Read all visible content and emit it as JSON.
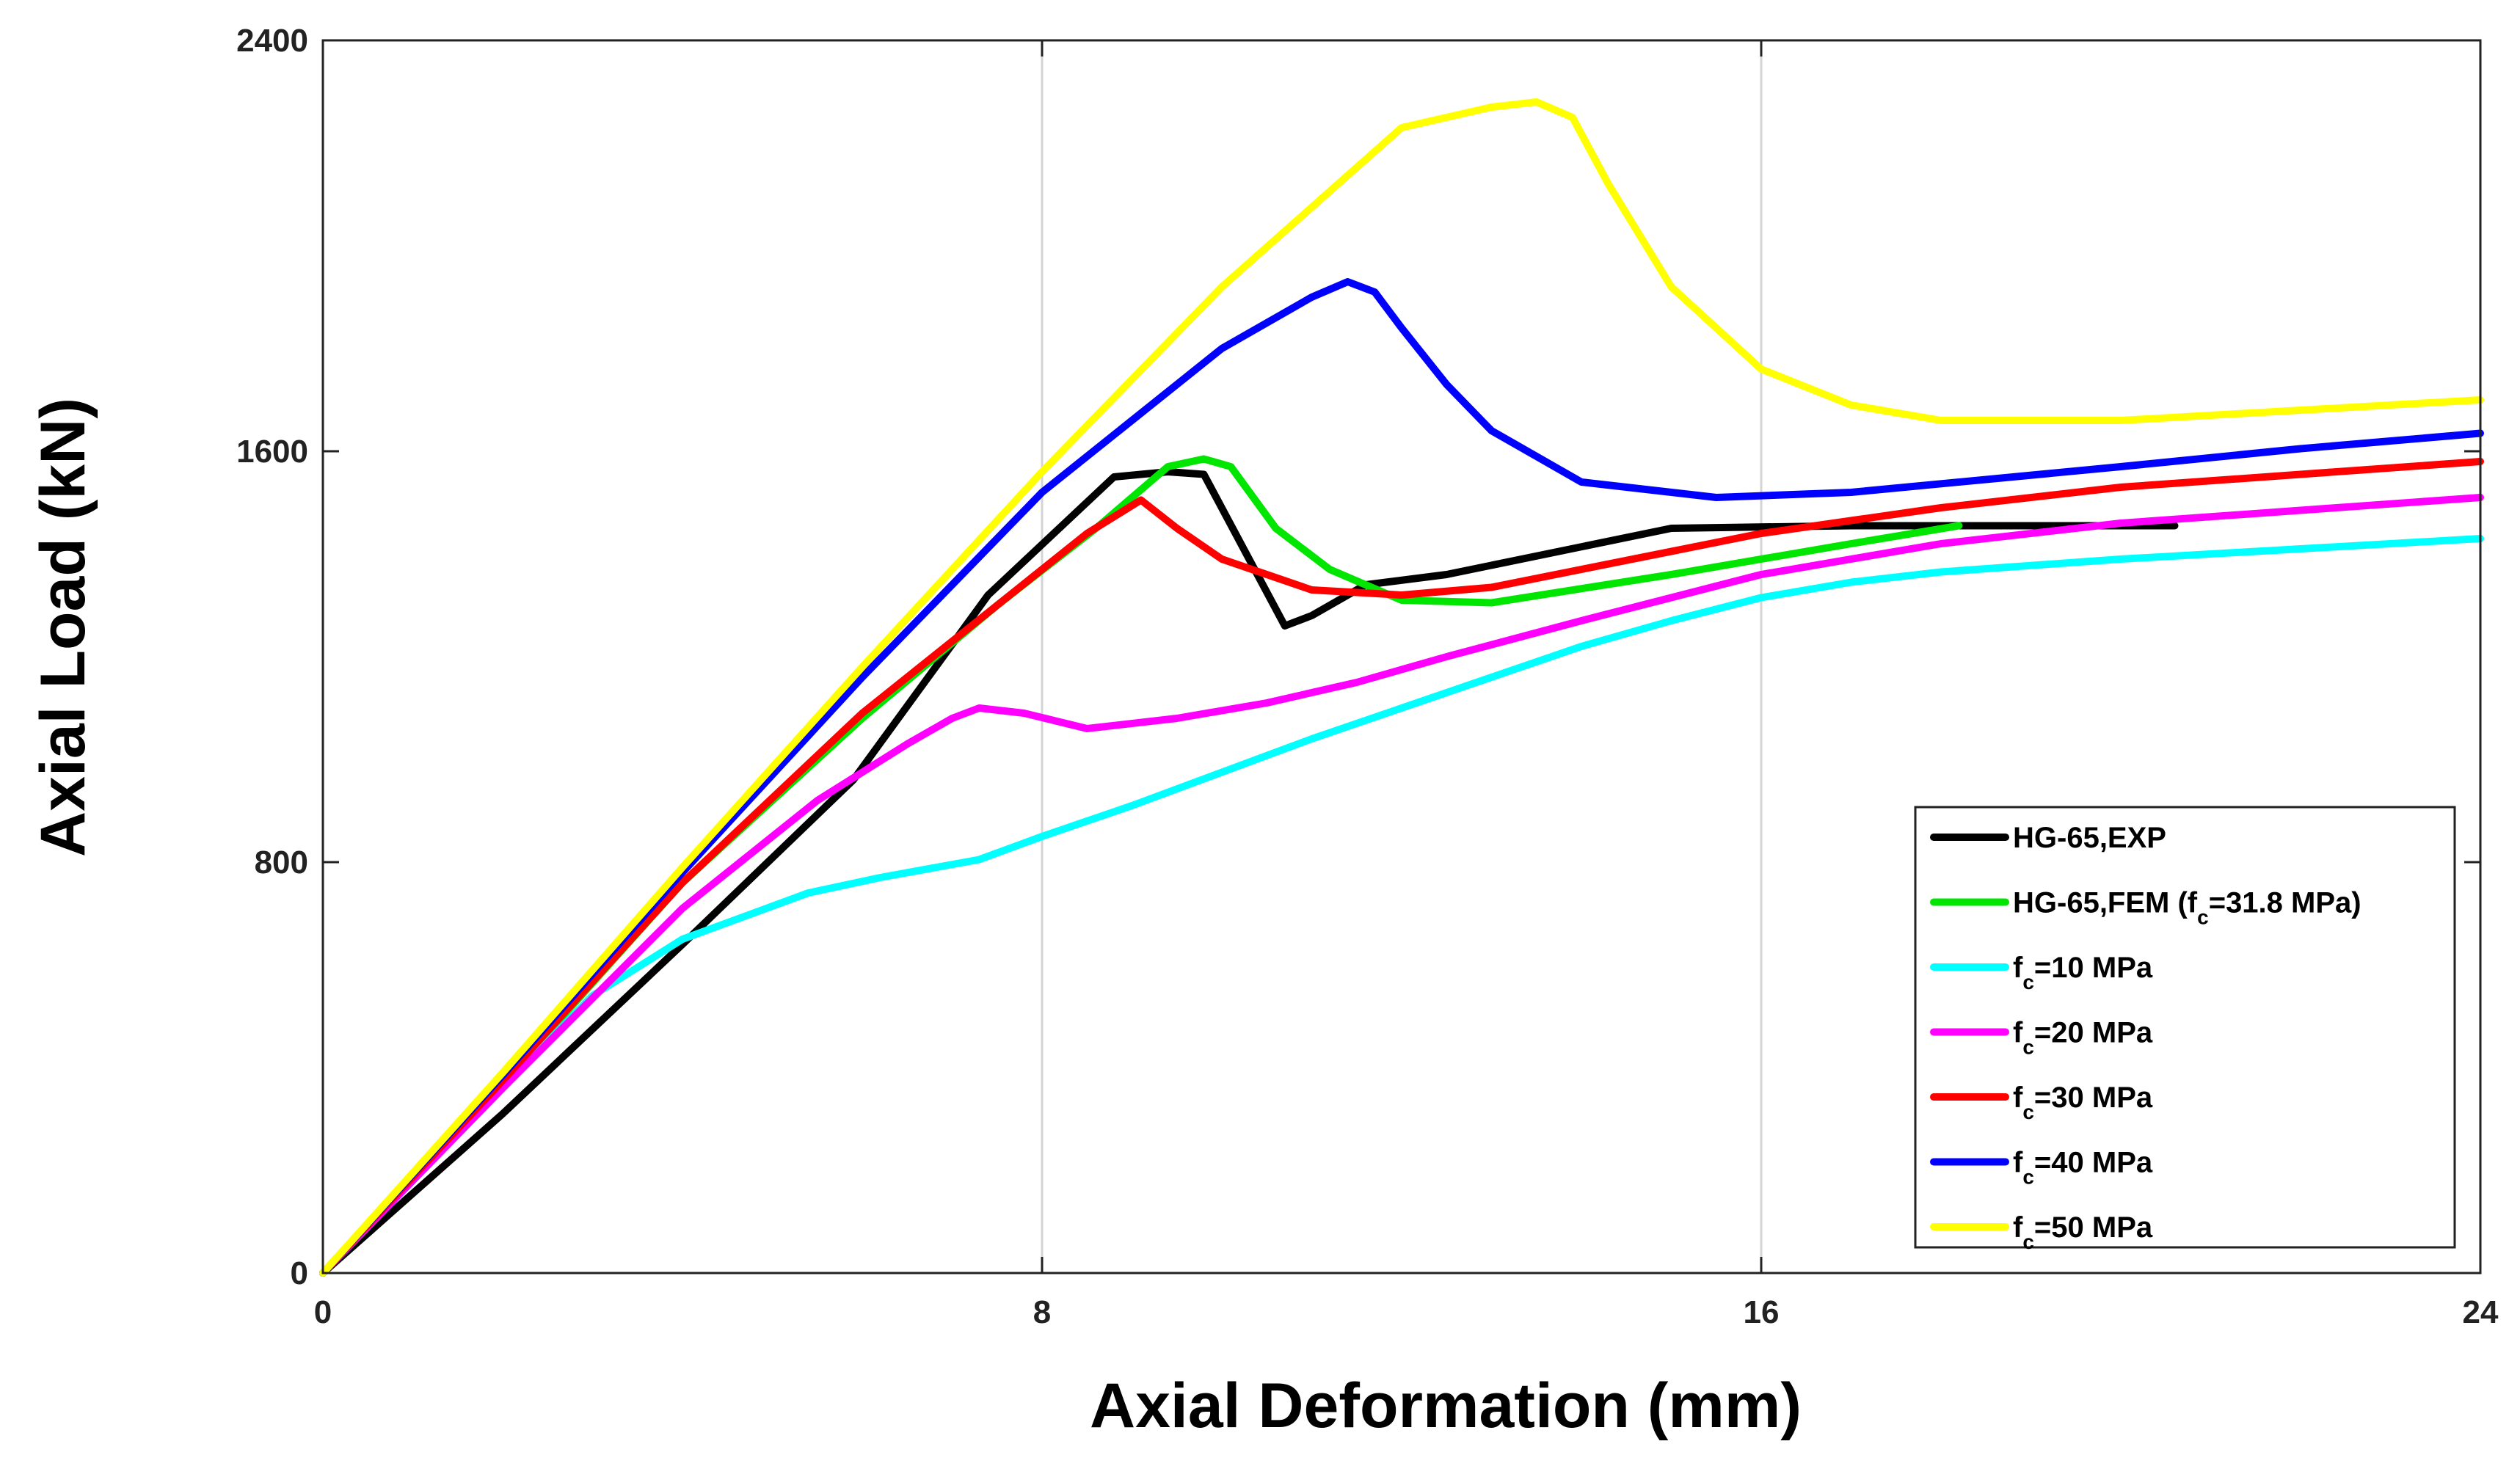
{
  "chart_data": {
    "type": "line",
    "title": "",
    "xlabel": "Axial Deformation (mm)",
    "ylabel": "Axial Load (kN)",
    "xlim": [
      0,
      24
    ],
    "ylim": [
      0,
      2400
    ],
    "xticks": [
      0,
      8,
      16,
      24
    ],
    "yticks": [
      0,
      800,
      1600,
      2400
    ],
    "xtick_labels": [
      "0",
      "8",
      "16",
      "24"
    ],
    "ytick_labels": [
      "0",
      "800",
      "1600",
      "2400"
    ],
    "grid": "x-only",
    "legend_position": "lower-right",
    "series": [
      {
        "name": "HG-65,EXP",
        "legend_main": "HG-65,EXP",
        "legend_sub": "",
        "legend_tail": "",
        "color": "#000000",
        "x": [
          0,
          2,
          4,
          5.9,
          7.4,
          8.8,
          9.4,
          9.8,
          10.7,
          11.0,
          11.6,
          12.5,
          15.0,
          17.0,
          18.0,
          20.6
        ],
        "y": [
          0,
          310,
          640,
          960,
          1320,
          1550,
          1560,
          1555,
          1260,
          1280,
          1340,
          1360,
          1450,
          1455,
          1455,
          1455
        ]
      },
      {
        "name": "HG-65,FEM (fc=31.8 MPa)",
        "legend_main": "HG-65,FEM (f",
        "legend_sub": "c",
        "legend_tail": "=31.8 MPa)",
        "color": "#00e600",
        "x": [
          0,
          2,
          4,
          6,
          7.5,
          8.6,
          9.4,
          9.8,
          10.1,
          10.6,
          11.2,
          12,
          13,
          15,
          17,
          18.2
        ],
        "y": [
          0,
          370,
          760,
          1080,
          1300,
          1450,
          1570,
          1585,
          1570,
          1450,
          1370,
          1310,
          1305,
          1360,
          1420,
          1455
        ]
      },
      {
        "name": "fc=10 MPa",
        "legend_main": "f",
        "legend_sub": "c",
        "legend_tail": "=10 MPa",
        "color": "#00ffff",
        "x": [
          0,
          1,
          2,
          3,
          4,
          5.4,
          6.2,
          7.3,
          8,
          9,
          10,
          11,
          12,
          13,
          14,
          15,
          16,
          17,
          18,
          20,
          22,
          24
        ],
        "y": [
          0,
          180,
          360,
          540,
          650,
          740,
          770,
          805,
          850,
          910,
          975,
          1040,
          1100,
          1160,
          1220,
          1270,
          1315,
          1345,
          1365,
          1390,
          1410,
          1430
        ]
      },
      {
        "name": "fc=20 MPa",
        "legend_main": "f",
        "legend_sub": "c",
        "legend_tail": "=20 MPa",
        "color": "#ff00ff",
        "x": [
          0,
          2,
          4,
          5.5,
          6.5,
          7,
          7.3,
          7.8,
          8.5,
          9.5,
          10.5,
          11.5,
          12.5,
          14,
          16,
          18,
          20,
          22,
          24
        ],
        "y": [
          0,
          360,
          710,
          920,
          1030,
          1080,
          1100,
          1090,
          1060,
          1080,
          1110,
          1150,
          1200,
          1270,
          1360,
          1420,
          1460,
          1485,
          1510
        ]
      },
      {
        "name": "fc=30 MPa",
        "legend_main": "f",
        "legend_sub": "c",
        "legend_tail": "=30 MPa",
        "color": "#ff0000",
        "x": [
          0,
          2,
          4,
          6,
          7.5,
          8.5,
          9.1,
          9.5,
          10,
          11,
          12,
          13,
          14,
          16,
          18,
          20,
          22,
          24
        ],
        "y": [
          0,
          375,
          760,
          1090,
          1300,
          1440,
          1505,
          1450,
          1390,
          1330,
          1320,
          1335,
          1370,
          1440,
          1490,
          1530,
          1555,
          1580
        ]
      },
      {
        "name": "fc=40 MPa",
        "legend_main": "f",
        "legend_sub": "c",
        "legend_tail": "=40 MPa",
        "color": "#0000ff",
        "x": [
          0,
          2,
          4,
          6,
          8,
          10,
          11,
          11.4,
          11.7,
          12,
          12.5,
          13,
          14,
          15.5,
          17,
          20,
          22,
          24
        ],
        "y": [
          0,
          385,
          780,
          1160,
          1520,
          1800,
          1900,
          1930,
          1910,
          1840,
          1730,
          1640,
          1540,
          1510,
          1520,
          1570,
          1605,
          1635
        ]
      },
      {
        "name": "fc=50 MPa",
        "legend_main": "f",
        "legend_sub": "c",
        "legend_tail": "=50 MPa",
        "color": "#ffff00",
        "x": [
          0,
          2,
          4,
          6,
          8,
          10,
          12,
          13,
          13.5,
          13.9,
          14.3,
          15,
          16,
          17,
          18,
          20,
          22,
          24
        ],
        "y": [
          0,
          390,
          790,
          1180,
          1560,
          1920,
          2230,
          2270,
          2280,
          2250,
          2120,
          1920,
          1760,
          1690,
          1660,
          1660,
          1680,
          1700
        ]
      }
    ]
  }
}
